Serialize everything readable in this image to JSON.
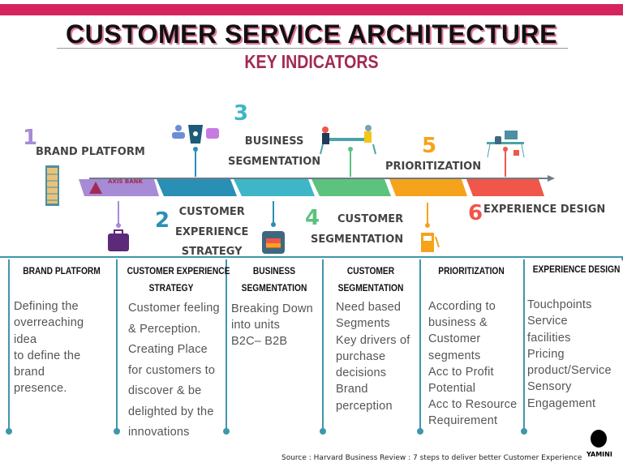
{
  "header": {
    "title": "CUSTOMER SERVICE ARCHITECTURE",
    "subtitle": "KEY INDICATORS",
    "accent": "#d6245f"
  },
  "timeline": {
    "logo_text": "AXIS BANK",
    "steps": [
      {
        "number": "1",
        "label": "BRAND PLATFORM",
        "color": "#a78bd6",
        "icon": "bookshelf-icon"
      },
      {
        "number": "2",
        "label_lines": [
          "CUSTOMER",
          "EXPERIENCE",
          "STRATEGY"
        ],
        "color": "#2a8fb4",
        "icon": "coffee-cup-icon"
      },
      {
        "number": "3",
        "label_lines": [
          "BUSINESS",
          "SEGMENTATION"
        ],
        "color": "#3fb6c8",
        "icon": "briefcase-icon"
      },
      {
        "number": "4",
        "label_lines": [
          "CUSTOMER",
          "SEGMENTATION"
        ],
        "color": "#5cc27e",
        "icon": "meeting-icon"
      },
      {
        "number": "5",
        "label": "PRIORITIZATION",
        "color": "#f5a31a",
        "icon": "fuel-pump-icon"
      },
      {
        "number": "6",
        "label": "EXPERIENCE DESIGN",
        "color": "#f0564a",
        "icon": "desk-icon"
      }
    ]
  },
  "columns": [
    {
      "heading": "BRAND PLATFORM",
      "body": "Defining the\noverreaching\nidea\nto define the\nbrand\npresence."
    },
    {
      "heading": "CUSTOMER EXPERIENCE\nSTRATEGY",
      "body": "Customer feeling\n& Perception.\nCreating Place\nfor customers to\ndiscover & be\ndelighted by the\ninnovations"
    },
    {
      "heading": "BUSINESS\nSEGMENTATION",
      "body": "Breaking Down\ninto units\nB2C– B2B"
    },
    {
      "heading": "CUSTOMER\nSEGMENTATION",
      "body": "Need based\nSegments\nKey drivers of\npurchase\ndecisions\nBrand\nperception"
    },
    {
      "heading": "PRIORITIZATION",
      "body": "According to\nbusiness &\nCustomer\nsegments\nAcc to Profit\nPotential\nAcc to Resource\nRequirement"
    },
    {
      "heading": "EXPERIENCE DESIGN",
      "body": "Touchpoints\nService\nfacilities\nPricing\nproduct/Service\nSensory\nEngagement"
    }
  ],
  "footer": {
    "source": "Source : Harvard Business Review : 7 steps to deliver better Customer Experience",
    "watermark": "YAMINI"
  }
}
